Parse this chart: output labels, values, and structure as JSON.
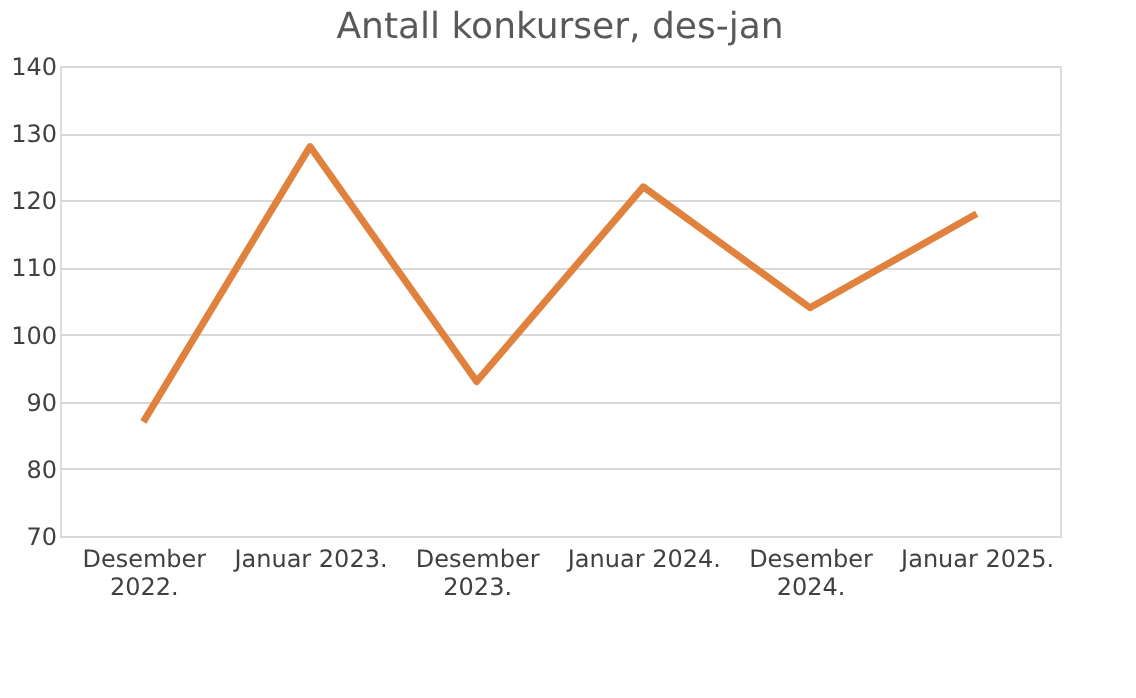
{
  "chart_data": {
    "type": "line",
    "title": "Antall konkurser, des-jan",
    "categories": [
      "Desember 2022.",
      "Januar 2023.",
      "Desember 2023.",
      "Januar 2024.",
      "Desember 2024.",
      "Januar 2025."
    ],
    "series": [
      {
        "color": "#e0823d",
        "values": [
          87,
          128,
          93,
          122,
          104,
          118
        ]
      }
    ],
    "ylim": [
      70,
      140
    ],
    "yticks": [
      70,
      80,
      90,
      100,
      110,
      120,
      130,
      140
    ],
    "grid": "y",
    "legend": false,
    "marker": "none",
    "line_style": "solid"
  }
}
